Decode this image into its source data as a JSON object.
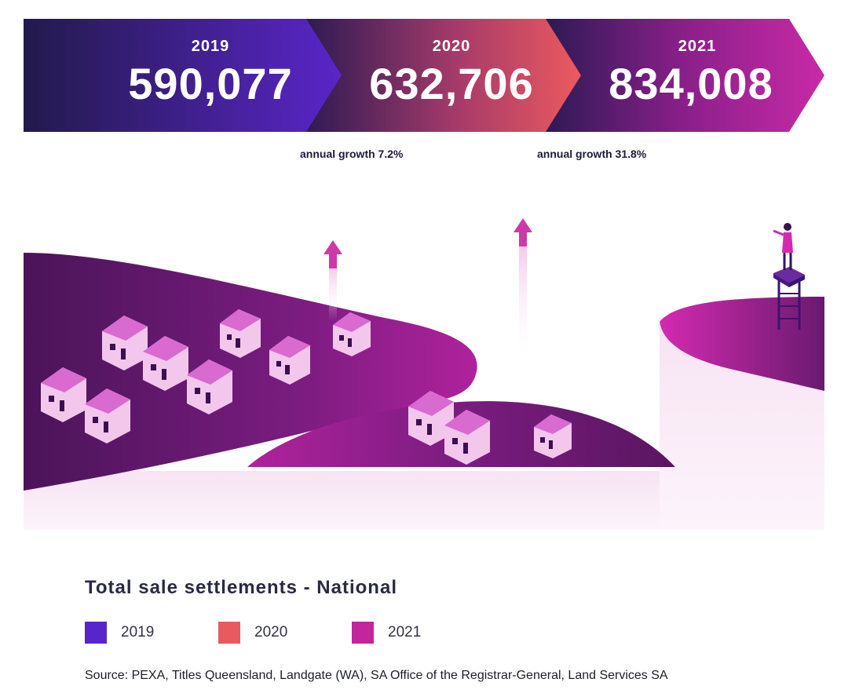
{
  "chart_data": {
    "type": "bar",
    "title": "Total sale settlements - National",
    "categories": [
      "2019",
      "2020",
      "2021"
    ],
    "values": [
      590077,
      632706,
      834008
    ],
    "value_labels": [
      "590,077",
      "632,706",
      "834,008"
    ],
    "growth_labels": [
      "annual growth 7.2%",
      "annual growth 31.8%"
    ],
    "legend": [
      "2019",
      "2020",
      "2021"
    ],
    "legend_placement": "bottom-left",
    "colors": {
      "2019": "#5a25c8",
      "2020": "#e85a60",
      "2021": "#c2259c"
    },
    "grid": false
  },
  "source": "Source: PEXA, Titles Queensland, Landgate (WA), SA Office of the Registrar-General, Land Services SA",
  "colors": {
    "navy": "#241a4e",
    "purple_dark": "#5a1660",
    "magenta": "#c2259c",
    "house_pink": "#f3c6ec",
    "house_roof": "#d96ad0"
  },
  "illustration": {
    "houses": 12,
    "arrows": 2,
    "figure": "person-on-lookout-tower"
  }
}
